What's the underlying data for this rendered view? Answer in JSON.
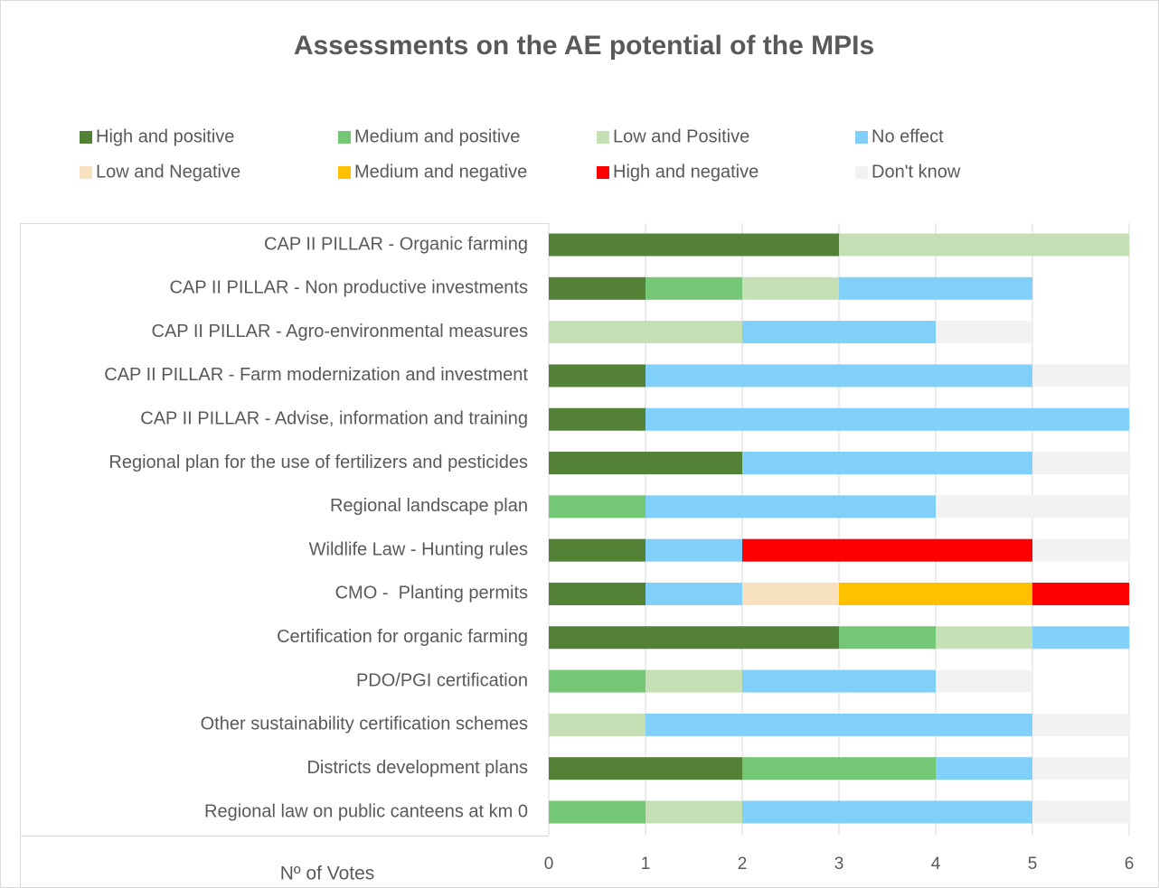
{
  "chart_data": {
    "type": "stacked_barh",
    "title": "Assessments on the AE potential of the MPIs",
    "xlabel": "Nº of Votes",
    "legend": "top",
    "grid": true,
    "xlim": [
      0,
      6
    ],
    "xticks": [
      0,
      1,
      2,
      3,
      4,
      5,
      6
    ],
    "categories": [
      "CAP II PILLAR - Organic farming",
      "CAP II PILLAR - Non productive investments",
      "CAP II PILLAR - Agro-environmental measures",
      "CAP II PILLAR - Farm modernization and investment",
      "CAP II PILLAR - Advise, information and training",
      "Regional plan for the use of fertilizers and pesticides",
      "Regional landscape plan",
      "Wildlife Law - Hunting rules",
      "CMO -  Planting permits",
      "Certification for organic farming",
      "PDO/PGI certification",
      "Other sustainability certification schemes",
      "Districts development plans",
      "Regional law on public canteens at km 0"
    ],
    "series": [
      {
        "name": "High and positive",
        "color": "#538135",
        "values": [
          3,
          1,
          0,
          1,
          1,
          2,
          0,
          1,
          1,
          3,
          0,
          0,
          2,
          0
        ]
      },
      {
        "name": "Medium and positive",
        "color": "#74c774",
        "values": [
          0,
          1,
          0,
          0,
          0,
          0,
          1,
          0,
          0,
          1,
          1,
          0,
          2,
          1
        ]
      },
      {
        "name": "Low and Positive",
        "color": "#c5e0b4",
        "values": [
          3,
          1,
          2,
          0,
          0,
          0,
          0,
          0,
          0,
          1,
          1,
          1,
          0,
          1
        ]
      },
      {
        "name": "No effect",
        "color": "#80d0f9",
        "values": [
          0,
          2,
          2,
          4,
          5,
          3,
          3,
          1,
          1,
          1,
          2,
          4,
          1,
          3
        ]
      },
      {
        "name": "Low and Negative",
        "color": "#f8e1be",
        "values": [
          0,
          0,
          0,
          0,
          0,
          0,
          0,
          0,
          1,
          0,
          0,
          0,
          0,
          0
        ]
      },
      {
        "name": "Medium and negative",
        "color": "#ffc000",
        "values": [
          0,
          0,
          0,
          0,
          0,
          0,
          0,
          0,
          2,
          0,
          0,
          0,
          0,
          0
        ]
      },
      {
        "name": "High and negative",
        "color": "#ff0000",
        "values": [
          0,
          0,
          0,
          0,
          0,
          0,
          0,
          3,
          1,
          0,
          0,
          0,
          0,
          0
        ]
      },
      {
        "name": "Don't know",
        "color": "#f2f2f2",
        "values": [
          0,
          0,
          1,
          1,
          0,
          1,
          2,
          1,
          0,
          0,
          1,
          1,
          1,
          1
        ]
      }
    ]
  }
}
